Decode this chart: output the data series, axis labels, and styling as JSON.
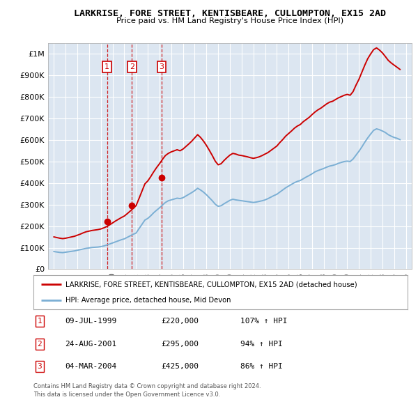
{
  "title": "LARKRISE, FORE STREET, KENTISBEARE, CULLOMPTON, EX15 2AD",
  "subtitle": "Price paid vs. HM Land Registry's House Price Index (HPI)",
  "legend_line1": "LARKRISE, FORE STREET, KENTISBEARE, CULLOMPTON, EX15 2AD (detached house)",
  "legend_line2": "HPI: Average price, detached house, Mid Devon",
  "footer1": "Contains HM Land Registry data © Crown copyright and database right 2024.",
  "footer2": "This data is licensed under the Open Government Licence v3.0.",
  "sales": [
    {
      "num": 1,
      "date": "09-JUL-1999",
      "price": "£220,000",
      "pct": "107%",
      "year": 1999.52,
      "value": 220000
    },
    {
      "num": 2,
      "date": "24-AUG-2001",
      "price": "£295,000",
      "pct": "94%",
      "year": 2001.65,
      "value": 295000
    },
    {
      "num": 3,
      "date": "04-MAR-2004",
      "price": "£425,000",
      "pct": "86%",
      "year": 2004.17,
      "value": 425000
    }
  ],
  "ylim": [
    0,
    1050000
  ],
  "xlim": [
    1994.5,
    2025.5
  ],
  "yticks": [
    0,
    100000,
    200000,
    300000,
    400000,
    500000,
    600000,
    700000,
    800000,
    900000,
    1000000
  ],
  "ytick_labels": [
    "£0",
    "£100K",
    "£200K",
    "£300K",
    "£400K",
    "£500K",
    "£600K",
    "£700K",
    "£800K",
    "£900K",
    "£1M"
  ],
  "xticks": [
    1995,
    1996,
    1997,
    1998,
    1999,
    2000,
    2001,
    2002,
    2003,
    2004,
    2005,
    2006,
    2007,
    2008,
    2009,
    2010,
    2011,
    2012,
    2013,
    2014,
    2015,
    2016,
    2017,
    2018,
    2019,
    2020,
    2021,
    2022,
    2023,
    2024,
    2025
  ],
  "red_color": "#cc0000",
  "blue_color": "#7bafd4",
  "plot_bg_color": "#dce6f1",
  "grid_color": "#ffffff",
  "hpi_red_data": [
    [
      1995.0,
      150000
    ],
    [
      1995.25,
      147000
    ],
    [
      1995.5,
      144000
    ],
    [
      1995.75,
      142000
    ],
    [
      1996.0,
      144000
    ],
    [
      1996.25,
      147000
    ],
    [
      1996.5,
      150000
    ],
    [
      1996.75,
      153000
    ],
    [
      1997.0,
      158000
    ],
    [
      1997.25,
      163000
    ],
    [
      1997.5,
      169000
    ],
    [
      1997.75,
      174000
    ],
    [
      1998.0,
      177000
    ],
    [
      1998.25,
      180000
    ],
    [
      1998.5,
      182000
    ],
    [
      1998.75,
      184000
    ],
    [
      1999.0,
      187000
    ],
    [
      1999.25,
      192000
    ],
    [
      1999.5,
      198000
    ],
    [
      1999.75,
      206000
    ],
    [
      2000.0,
      215000
    ],
    [
      2000.25,
      224000
    ],
    [
      2000.5,
      232000
    ],
    [
      2000.75,
      240000
    ],
    [
      2001.0,
      247000
    ],
    [
      2001.25,
      258000
    ],
    [
      2001.5,
      270000
    ],
    [
      2001.75,
      282000
    ],
    [
      2002.0,
      295000
    ],
    [
      2002.25,
      328000
    ],
    [
      2002.5,
      362000
    ],
    [
      2002.75,
      396000
    ],
    [
      2003.0,
      410000
    ],
    [
      2003.25,
      430000
    ],
    [
      2003.5,
      452000
    ],
    [
      2003.75,
      472000
    ],
    [
      2004.0,
      490000
    ],
    [
      2004.25,
      510000
    ],
    [
      2004.5,
      528000
    ],
    [
      2004.75,
      538000
    ],
    [
      2005.0,
      545000
    ],
    [
      2005.25,
      550000
    ],
    [
      2005.5,
      555000
    ],
    [
      2005.75,
      550000
    ],
    [
      2006.0,
      558000
    ],
    [
      2006.25,
      570000
    ],
    [
      2006.5,
      582000
    ],
    [
      2006.75,
      595000
    ],
    [
      2007.0,
      610000
    ],
    [
      2007.25,
      625000
    ],
    [
      2007.5,
      612000
    ],
    [
      2007.75,
      595000
    ],
    [
      2008.0,
      575000
    ],
    [
      2008.25,
      552000
    ],
    [
      2008.5,
      528000
    ],
    [
      2008.75,
      502000
    ],
    [
      2009.0,
      485000
    ],
    [
      2009.25,
      490000
    ],
    [
      2009.5,
      505000
    ],
    [
      2009.75,
      518000
    ],
    [
      2010.0,
      530000
    ],
    [
      2010.25,
      538000
    ],
    [
      2010.5,
      535000
    ],
    [
      2010.75,
      530000
    ],
    [
      2011.0,
      528000
    ],
    [
      2011.25,
      525000
    ],
    [
      2011.5,
      522000
    ],
    [
      2011.75,
      518000
    ],
    [
      2012.0,
      515000
    ],
    [
      2012.25,
      518000
    ],
    [
      2012.5,
      522000
    ],
    [
      2012.75,
      528000
    ],
    [
      2013.0,
      535000
    ],
    [
      2013.25,
      542000
    ],
    [
      2013.5,
      552000
    ],
    [
      2013.75,
      562000
    ],
    [
      2014.0,
      572000
    ],
    [
      2014.25,
      588000
    ],
    [
      2014.5,
      602000
    ],
    [
      2014.75,
      618000
    ],
    [
      2015.0,
      630000
    ],
    [
      2015.25,
      642000
    ],
    [
      2015.5,
      655000
    ],
    [
      2015.75,
      665000
    ],
    [
      2016.0,
      672000
    ],
    [
      2016.25,
      685000
    ],
    [
      2016.5,
      695000
    ],
    [
      2016.75,
      705000
    ],
    [
      2017.0,
      718000
    ],
    [
      2017.25,
      730000
    ],
    [
      2017.5,
      740000
    ],
    [
      2017.75,
      748000
    ],
    [
      2018.0,
      758000
    ],
    [
      2018.25,
      768000
    ],
    [
      2018.5,
      776000
    ],
    [
      2018.75,
      780000
    ],
    [
      2019.0,
      788000
    ],
    [
      2019.25,
      796000
    ],
    [
      2019.5,
      802000
    ],
    [
      2019.75,
      808000
    ],
    [
      2020.0,
      812000
    ],
    [
      2020.25,
      808000
    ],
    [
      2020.5,
      825000
    ],
    [
      2020.75,
      855000
    ],
    [
      2021.0,
      882000
    ],
    [
      2021.25,
      915000
    ],
    [
      2021.5,
      948000
    ],
    [
      2021.75,
      978000
    ],
    [
      2022.0,
      1000000
    ],
    [
      2022.25,
      1020000
    ],
    [
      2022.5,
      1028000
    ],
    [
      2022.75,
      1018000
    ],
    [
      2023.0,
      1005000
    ],
    [
      2023.25,
      988000
    ],
    [
      2023.5,
      970000
    ],
    [
      2023.75,
      958000
    ],
    [
      2024.0,
      948000
    ],
    [
      2024.25,
      938000
    ],
    [
      2024.5,
      928000
    ]
  ],
  "hpi_blue_data": [
    [
      1995.0,
      82000
    ],
    [
      1995.25,
      80000
    ],
    [
      1995.5,
      78000
    ],
    [
      1995.75,
      77000
    ],
    [
      1996.0,
      79000
    ],
    [
      1996.25,
      81000
    ],
    [
      1996.5,
      83000
    ],
    [
      1996.75,
      85000
    ],
    [
      1997.0,
      88000
    ],
    [
      1997.25,
      91000
    ],
    [
      1997.5,
      94000
    ],
    [
      1997.75,
      97000
    ],
    [
      1998.0,
      99000
    ],
    [
      1998.25,
      101000
    ],
    [
      1998.5,
      102000
    ],
    [
      1998.75,
      103000
    ],
    [
      1999.0,
      105000
    ],
    [
      1999.25,
      108000
    ],
    [
      1999.5,
      112000
    ],
    [
      1999.75,
      117000
    ],
    [
      2000.0,
      122000
    ],
    [
      2000.25,
      127000
    ],
    [
      2000.5,
      132000
    ],
    [
      2000.75,
      137000
    ],
    [
      2001.0,
      141000
    ],
    [
      2001.25,
      148000
    ],
    [
      2001.5,
      155000
    ],
    [
      2001.75,
      162000
    ],
    [
      2002.0,
      168000
    ],
    [
      2002.25,
      188000
    ],
    [
      2002.5,
      208000
    ],
    [
      2002.75,
      228000
    ],
    [
      2003.0,
      236000
    ],
    [
      2003.25,
      248000
    ],
    [
      2003.5,
      262000
    ],
    [
      2003.75,
      274000
    ],
    [
      2004.0,
      285000
    ],
    [
      2004.25,
      298000
    ],
    [
      2004.5,
      310000
    ],
    [
      2004.75,
      318000
    ],
    [
      2005.0,
      322000
    ],
    [
      2005.25,
      326000
    ],
    [
      2005.5,
      330000
    ],
    [
      2005.75,
      328000
    ],
    [
      2006.0,
      332000
    ],
    [
      2006.25,
      340000
    ],
    [
      2006.5,
      348000
    ],
    [
      2006.75,
      356000
    ],
    [
      2007.0,
      365000
    ],
    [
      2007.25,
      376000
    ],
    [
      2007.5,
      368000
    ],
    [
      2007.75,
      358000
    ],
    [
      2008.0,
      346000
    ],
    [
      2008.25,
      332000
    ],
    [
      2008.5,
      318000
    ],
    [
      2008.75,
      302000
    ],
    [
      2009.0,
      292000
    ],
    [
      2009.25,
      295000
    ],
    [
      2009.5,
      304000
    ],
    [
      2009.75,
      312000
    ],
    [
      2010.0,
      320000
    ],
    [
      2010.25,
      325000
    ],
    [
      2010.5,
      322000
    ],
    [
      2010.75,
      320000
    ],
    [
      2011.0,
      318000
    ],
    [
      2011.25,
      316000
    ],
    [
      2011.5,
      314000
    ],
    [
      2011.75,
      312000
    ],
    [
      2012.0,
      310000
    ],
    [
      2012.25,
      312000
    ],
    [
      2012.5,
      315000
    ],
    [
      2012.75,
      318000
    ],
    [
      2013.0,
      322000
    ],
    [
      2013.25,
      328000
    ],
    [
      2013.5,
      335000
    ],
    [
      2013.75,
      342000
    ],
    [
      2014.0,
      348000
    ],
    [
      2014.25,
      358000
    ],
    [
      2014.5,
      368000
    ],
    [
      2014.75,
      378000
    ],
    [
      2015.0,
      386000
    ],
    [
      2015.25,
      394000
    ],
    [
      2015.5,
      402000
    ],
    [
      2015.75,
      408000
    ],
    [
      2016.0,
      412000
    ],
    [
      2016.25,
      420000
    ],
    [
      2016.5,
      428000
    ],
    [
      2016.75,
      435000
    ],
    [
      2017.0,
      443000
    ],
    [
      2017.25,
      452000
    ],
    [
      2017.5,
      458000
    ],
    [
      2017.75,
      463000
    ],
    [
      2018.0,
      468000
    ],
    [
      2018.25,
      474000
    ],
    [
      2018.5,
      479000
    ],
    [
      2018.75,
      482000
    ],
    [
      2019.0,
      486000
    ],
    [
      2019.25,
      492000
    ],
    [
      2019.5,
      496000
    ],
    [
      2019.75,
      500000
    ],
    [
      2020.0,
      502000
    ],
    [
      2020.25,
      500000
    ],
    [
      2020.5,
      512000
    ],
    [
      2020.75,
      530000
    ],
    [
      2021.0,
      548000
    ],
    [
      2021.25,
      568000
    ],
    [
      2021.5,
      590000
    ],
    [
      2021.75,
      610000
    ],
    [
      2022.0,
      628000
    ],
    [
      2022.25,
      645000
    ],
    [
      2022.5,
      652000
    ],
    [
      2022.75,
      648000
    ],
    [
      2023.0,
      642000
    ],
    [
      2023.25,
      635000
    ],
    [
      2023.5,
      625000
    ],
    [
      2023.75,
      618000
    ],
    [
      2024.0,
      612000
    ],
    [
      2024.25,
      608000
    ],
    [
      2024.5,
      602000
    ]
  ]
}
